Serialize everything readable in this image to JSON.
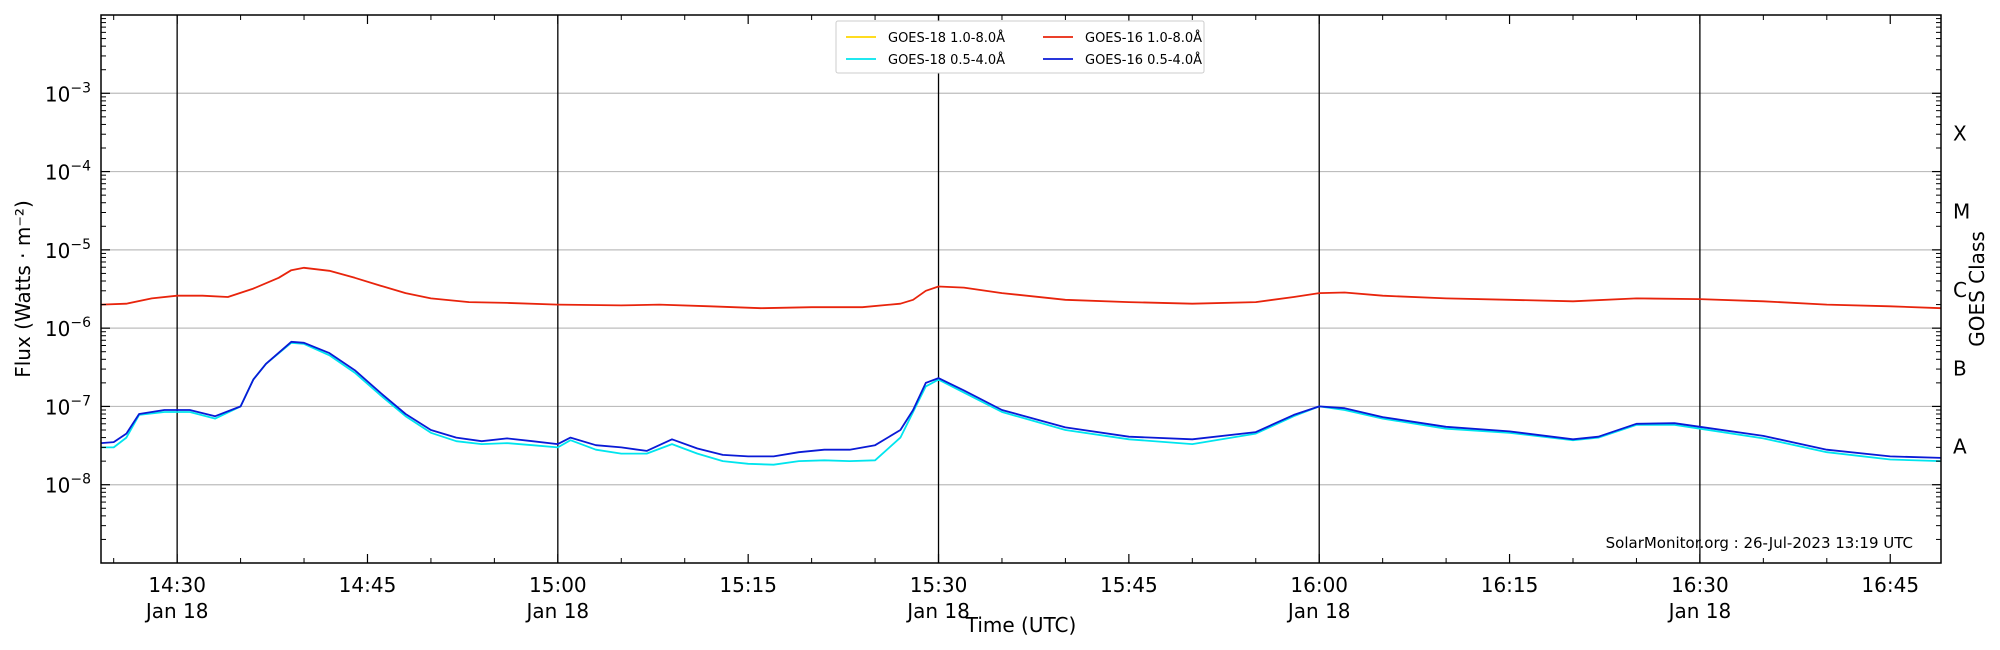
{
  "chart_data": {
    "type": "line",
    "xlabel": "Time (UTC)",
    "ylabel": "Flux (Watts · m⁻²)",
    "y2label": "GOES Class",
    "yscale": "log",
    "xlim": [
      "14:24",
      "16:49"
    ],
    "ylim": [
      1e-09,
      0.01
    ],
    "grid": "horizontal at decades",
    "legend_position": "top-center",
    "x_ticks": [
      {
        "time": "14:30",
        "label": "14:30",
        "sublabel": "Jan 18",
        "vline": true
      },
      {
        "time": "14:45",
        "label": "14:45",
        "sublabel": "",
        "vline": false
      },
      {
        "time": "15:00",
        "label": "15:00",
        "sublabel": "Jan 18",
        "vline": true
      },
      {
        "time": "15:15",
        "label": "15:15",
        "sublabel": "",
        "vline": false
      },
      {
        "time": "15:30",
        "label": "15:30",
        "sublabel": "Jan 18",
        "vline": true
      },
      {
        "time": "15:45",
        "label": "15:45",
        "sublabel": "",
        "vline": false
      },
      {
        "time": "16:00",
        "label": "16:00",
        "sublabel": "Jan 18",
        "vline": true
      },
      {
        "time": "16:15",
        "label": "16:15",
        "sublabel": "",
        "vline": false
      },
      {
        "time": "16:30",
        "label": "16:30",
        "sublabel": "Jan 18",
        "vline": true
      },
      {
        "time": "16:45",
        "label": "16:45",
        "sublabel": "",
        "vline": false
      }
    ],
    "y_ticks": [
      {
        "exp": -3,
        "label": "10",
        "sup": "−3"
      },
      {
        "exp": -4,
        "label": "10",
        "sup": "−4"
      },
      {
        "exp": -5,
        "label": "10",
        "sup": "−5"
      },
      {
        "exp": -6,
        "label": "10",
        "sup": "−6"
      },
      {
        "exp": -7,
        "label": "10",
        "sup": "−7"
      },
      {
        "exp": -8,
        "label": "10",
        "sup": "−8"
      }
    ],
    "goes_classes": [
      {
        "label": "X",
        "flux": 0.0001
      },
      {
        "label": "M",
        "flux": 1e-05
      },
      {
        "label": "C",
        "flux": 1e-06
      },
      {
        "label": "B",
        "flux": 1e-07
      },
      {
        "label": "A",
        "flux": 1e-08
      }
    ],
    "annotation": "SolarMonitor.org : 26-Jul-2023 13:19 UTC",
    "series": [
      {
        "name": "GOES-18 1.0-8.0Å",
        "color": "#ffd700",
        "points": []
      },
      {
        "name": "GOES-16 1.0-8.0Å",
        "color": "#e8240c",
        "points": [
          [
            "14:24",
            2e-06
          ],
          [
            "14:26",
            2.05e-06
          ],
          [
            "14:28",
            2.4e-06
          ],
          [
            "14:30",
            2.6e-06
          ],
          [
            "14:32",
            2.6e-06
          ],
          [
            "14:34",
            2.5e-06
          ],
          [
            "14:36",
            3.2e-06
          ],
          [
            "14:38",
            4.4e-06
          ],
          [
            "14:39",
            5.5e-06
          ],
          [
            "14:40",
            5.9e-06
          ],
          [
            "14:42",
            5.4e-06
          ],
          [
            "14:44",
            4.4e-06
          ],
          [
            "14:46",
            3.5e-06
          ],
          [
            "14:48",
            2.8e-06
          ],
          [
            "14:50",
            2.4e-06
          ],
          [
            "14:53",
            2.15e-06
          ],
          [
            "14:56",
            2.1e-06
          ],
          [
            "15:00",
            2e-06
          ],
          [
            "15:05",
            1.95e-06
          ],
          [
            "15:08",
            2e-06
          ],
          [
            "15:12",
            1.9e-06
          ],
          [
            "15:16",
            1.8e-06
          ],
          [
            "15:20",
            1.85e-06
          ],
          [
            "15:24",
            1.85e-06
          ],
          [
            "15:27",
            2.05e-06
          ],
          [
            "15:28",
            2.3e-06
          ],
          [
            "15:29",
            3e-06
          ],
          [
            "15:30",
            3.4e-06
          ],
          [
            "15:32",
            3.3e-06
          ],
          [
            "15:35",
            2.8e-06
          ],
          [
            "15:40",
            2.3e-06
          ],
          [
            "15:45",
            2.15e-06
          ],
          [
            "15:50",
            2.05e-06
          ],
          [
            "15:55",
            2.15e-06
          ],
          [
            "15:58",
            2.5e-06
          ],
          [
            "16:00",
            2.8e-06
          ],
          [
            "16:02",
            2.85e-06
          ],
          [
            "16:05",
            2.6e-06
          ],
          [
            "16:10",
            2.4e-06
          ],
          [
            "16:15",
            2.3e-06
          ],
          [
            "16:20",
            2.2e-06
          ],
          [
            "16:25",
            2.4e-06
          ],
          [
            "16:30",
            2.35e-06
          ],
          [
            "16:35",
            2.2e-06
          ],
          [
            "16:40",
            2e-06
          ],
          [
            "16:45",
            1.9e-06
          ],
          [
            "16:49",
            1.8e-06
          ]
        ]
      },
      {
        "name": "GOES-18 0.5-4.0Å",
        "color": "#00e5ee",
        "points": [
          [
            "14:24",
            3e-08
          ],
          [
            "14:25",
            3e-08
          ],
          [
            "14:26",
            4e-08
          ],
          [
            "14:27",
            7.8e-08
          ],
          [
            "14:29",
            8.5e-08
          ],
          [
            "14:31",
            8.5e-08
          ],
          [
            "14:33",
            7e-08
          ],
          [
            "14:35",
            1e-07
          ],
          [
            "14:36",
            2.2e-07
          ],
          [
            "14:37",
            3.5e-07
          ],
          [
            "14:39",
            6.5e-07
          ],
          [
            "14:40",
            6.3e-07
          ],
          [
            "14:42",
            4.5e-07
          ],
          [
            "14:44",
            2.7e-07
          ],
          [
            "14:46",
            1.4e-07
          ],
          [
            "14:48",
            7.5e-08
          ],
          [
            "14:50",
            4.6e-08
          ],
          [
            "14:52",
            3.6e-08
          ],
          [
            "14:54",
            3.3e-08
          ],
          [
            "14:56",
            3.4e-08
          ],
          [
            "14:58",
            3.2e-08
          ],
          [
            "15:00",
            3e-08
          ],
          [
            "15:01",
            3.7e-08
          ],
          [
            "15:03",
            2.8e-08
          ],
          [
            "15:05",
            2.5e-08
          ],
          [
            "15:07",
            2.5e-08
          ],
          [
            "15:09",
            3.3e-08
          ],
          [
            "15:11",
            2.5e-08
          ],
          [
            "15:13",
            2e-08
          ],
          [
            "15:15",
            1.85e-08
          ],
          [
            "15:17",
            1.8e-08
          ],
          [
            "15:19",
            2e-08
          ],
          [
            "15:21",
            2.05e-08
          ],
          [
            "15:23",
            2e-08
          ],
          [
            "15:25",
            2.05e-08
          ],
          [
            "15:27",
            4e-08
          ],
          [
            "15:28",
            8.5e-08
          ],
          [
            "15:29",
            1.8e-07
          ],
          [
            "15:30",
            2.2e-07
          ],
          [
            "15:32",
            1.5e-07
          ],
          [
            "15:35",
            8.5e-08
          ],
          [
            "15:40",
            5e-08
          ],
          [
            "15:45",
            3.8e-08
          ],
          [
            "15:50",
            3.3e-08
          ],
          [
            "15:55",
            4.5e-08
          ],
          [
            "15:58",
            7.5e-08
          ],
          [
            "16:00",
            1e-07
          ],
          [
            "16:02",
            9e-08
          ],
          [
            "16:05",
            7e-08
          ],
          [
            "16:10",
            5.2e-08
          ],
          [
            "16:15",
            4.6e-08
          ],
          [
            "16:20",
            3.7e-08
          ],
          [
            "16:22",
            4e-08
          ],
          [
            "16:25",
            5.8e-08
          ],
          [
            "16:28",
            5.8e-08
          ],
          [
            "16:30",
            5.2e-08
          ],
          [
            "16:35",
            3.9e-08
          ],
          [
            "16:40",
            2.6e-08
          ],
          [
            "16:45",
            2.1e-08
          ],
          [
            "16:49",
            2e-08
          ]
        ]
      },
      {
        "name": "GOES-16 0.5-4.0Å",
        "color": "#0a1ad6",
        "points": [
          [
            "14:24",
            3.4e-08
          ],
          [
            "14:25",
            3.5e-08
          ],
          [
            "14:26",
            4.5e-08
          ],
          [
            "14:27",
            8e-08
          ],
          [
            "14:29",
            9e-08
          ],
          [
            "14:31",
            9e-08
          ],
          [
            "14:33",
            7.5e-08
          ],
          [
            "14:35",
            1e-07
          ],
          [
            "14:36",
            2.2e-07
          ],
          [
            "14:37",
            3.5e-07
          ],
          [
            "14:39",
            6.7e-07
          ],
          [
            "14:40",
            6.5e-07
          ],
          [
            "14:42",
            4.8e-07
          ],
          [
            "14:44",
            2.9e-07
          ],
          [
            "14:46",
            1.5e-07
          ],
          [
            "14:48",
            8e-08
          ],
          [
            "14:50",
            5e-08
          ],
          [
            "14:52",
            4e-08
          ],
          [
            "14:54",
            3.6e-08
          ],
          [
            "14:56",
            3.9e-08
          ],
          [
            "14:58",
            3.6e-08
          ],
          [
            "15:00",
            3.3e-08
          ],
          [
            "15:01",
            4e-08
          ],
          [
            "15:03",
            3.2e-08
          ],
          [
            "15:05",
            3e-08
          ],
          [
            "15:07",
            2.7e-08
          ],
          [
            "15:09",
            3.8e-08
          ],
          [
            "15:11",
            2.9e-08
          ],
          [
            "15:13",
            2.4e-08
          ],
          [
            "15:15",
            2.3e-08
          ],
          [
            "15:17",
            2.3e-08
          ],
          [
            "15:19",
            2.6e-08
          ],
          [
            "15:21",
            2.8e-08
          ],
          [
            "15:23",
            2.8e-08
          ],
          [
            "15:25",
            3.2e-08
          ],
          [
            "15:27",
            5e-08
          ],
          [
            "15:28",
            9e-08
          ],
          [
            "15:29",
            2e-07
          ],
          [
            "15:30",
            2.3e-07
          ],
          [
            "15:32",
            1.6e-07
          ],
          [
            "15:35",
            9e-08
          ],
          [
            "15:40",
            5.4e-08
          ],
          [
            "15:45",
            4.1e-08
          ],
          [
            "15:50",
            3.8e-08
          ],
          [
            "15:55",
            4.7e-08
          ],
          [
            "15:58",
            7.8e-08
          ],
          [
            "16:00",
            1e-07
          ],
          [
            "16:02",
            9.5e-08
          ],
          [
            "16:05",
            7.3e-08
          ],
          [
            "16:10",
            5.5e-08
          ],
          [
            "16:15",
            4.8e-08
          ],
          [
            "16:20",
            3.8e-08
          ],
          [
            "16:22",
            4.1e-08
          ],
          [
            "16:25",
            6e-08
          ],
          [
            "16:28",
            6.1e-08
          ],
          [
            "16:30",
            5.5e-08
          ],
          [
            "16:35",
            4.2e-08
          ],
          [
            "16:40",
            2.8e-08
          ],
          [
            "16:45",
            2.3e-08
          ],
          [
            "16:49",
            2.2e-08
          ]
        ]
      }
    ]
  }
}
